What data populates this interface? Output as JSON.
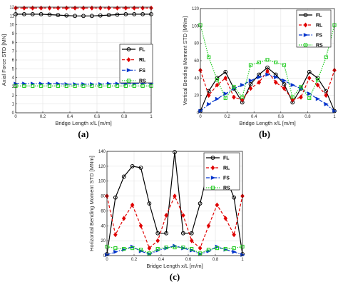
{
  "chart_data": [
    {
      "id": "a",
      "type": "line",
      "caption": "(a)",
      "xlabel": "Bridge Length x/L [m/m]",
      "ylabel": "Axial Force STD [MN]",
      "xlim": [
        0,
        1
      ],
      "ylim": [
        0,
        12
      ],
      "xticks": [
        0,
        0.2,
        0.4,
        0.6,
        0.8,
        1
      ],
      "xtick_labels": [
        "0",
        "0.2",
        "0.4",
        "0.6",
        "0.8",
        "1"
      ],
      "yticks": [
        0,
        1,
        2,
        3,
        4,
        5,
        6,
        7,
        8,
        9,
        10,
        11,
        12
      ],
      "ytick_labels": [
        "0",
        "1",
        "2",
        "3",
        "4",
        "5",
        "6",
        "7",
        "8",
        "9",
        "10",
        "11",
        "12"
      ],
      "grid": true,
      "legend": "center-right",
      "x": [
        0,
        0.0625,
        0.125,
        0.1875,
        0.25,
        0.3125,
        0.375,
        0.4375,
        0.5,
        0.5625,
        0.625,
        0.6875,
        0.75,
        0.8125,
        0.875,
        0.9375,
        1
      ],
      "series": [
        {
          "name": "FL",
          "color": "#000000",
          "marker": "circle",
          "dash": "solid",
          "values": [
            11.2,
            11.2,
            11.2,
            11.2,
            11.15,
            11.1,
            11.05,
            11.0,
            11.0,
            11.0,
            11.05,
            11.1,
            11.15,
            11.2,
            11.2,
            11.2,
            11.2
          ]
        },
        {
          "name": "RL",
          "color": "#e00000",
          "marker": "diamond",
          "dash": "dashed",
          "values": [
            11.9,
            11.9,
            11.9,
            11.9,
            11.9,
            11.9,
            11.9,
            11.9,
            11.9,
            11.9,
            11.9,
            11.9,
            11.9,
            11.9,
            11.9,
            11.9,
            11.9
          ]
        },
        {
          "name": "FS",
          "color": "#0033cc",
          "marker": "triangle",
          "dash": "dashdot",
          "values": [
            3.3,
            3.3,
            3.3,
            3.3,
            3.3,
            3.3,
            3.25,
            3.25,
            3.25,
            3.25,
            3.25,
            3.3,
            3.3,
            3.3,
            3.3,
            3.35,
            3.35
          ]
        },
        {
          "name": "RS",
          "color": "#22cc22",
          "marker": "square",
          "dash": "dotted",
          "values": [
            3.05,
            3.05,
            3.05,
            3.05,
            3.05,
            3.05,
            3.05,
            3.05,
            3.05,
            3.05,
            3.05,
            3.05,
            3.05,
            3.05,
            3.05,
            3.05,
            3.05
          ]
        }
      ]
    },
    {
      "id": "b",
      "type": "line",
      "caption": "(b)",
      "xlabel": "Bridge Length x/L [m/m]",
      "ylabel": "Vertical Bending Moment STD [MNm]",
      "xlim": [
        0,
        1
      ],
      "ylim": [
        0,
        120
      ],
      "xticks": [
        0,
        0.2,
        0.4,
        0.6,
        0.8,
        1
      ],
      "xtick_labels": [
        "0",
        "0.2",
        "0.4",
        "0.6",
        "0.8",
        "1"
      ],
      "yticks": [
        0,
        20,
        40,
        60,
        80,
        100,
        120
      ],
      "ytick_labels": [
        "0",
        "20",
        "40",
        "60",
        "80",
        "100",
        "120"
      ],
      "grid": true,
      "legend": "top-right",
      "x": [
        0,
        0.0625,
        0.125,
        0.1875,
        0.25,
        0.3125,
        0.375,
        0.4375,
        0.5,
        0.5625,
        0.625,
        0.6875,
        0.75,
        0.8125,
        0.875,
        0.9375,
        1
      ],
      "series": [
        {
          "name": "FL",
          "color": "#000000",
          "marker": "circle",
          "dash": "solid",
          "values": [
            2,
            25,
            40,
            47,
            28,
            12,
            33,
            44,
            52,
            44,
            33,
            12,
            28,
            47,
            40,
            25,
            2
          ]
        },
        {
          "name": "RL",
          "color": "#e00000",
          "marker": "diamond",
          "dash": "dashed",
          "values": [
            49,
            20,
            32,
            40,
            18,
            15,
            28,
            35,
            48,
            35,
            28,
            15,
            18,
            40,
            32,
            20,
            49
          ]
        },
        {
          "name": "FS",
          "color": "#0033cc",
          "marker": "triangle",
          "dash": "dashdot",
          "values": [
            2,
            10,
            16,
            22,
            28,
            32,
            37,
            41,
            44,
            41,
            37,
            32,
            28,
            22,
            16,
            10,
            2
          ]
        },
        {
          "name": "RS",
          "color": "#22cc22",
          "marker": "square",
          "dash": "dotted",
          "values": [
            101,
            64,
            38,
            17,
            30,
            18,
            55,
            58,
            61,
            58,
            55,
            18,
            30,
            17,
            38,
            64,
            101
          ]
        }
      ]
    },
    {
      "id": "c",
      "type": "line",
      "caption": "(c)",
      "xlabel": "Bridge Length x/L [m/m]",
      "ylabel": "Horizontal Bending Moment STD [MNm]",
      "xlim": [
        0,
        1
      ],
      "ylim": [
        0,
        140
      ],
      "xticks": [
        0,
        0.2,
        0.4,
        0.6,
        0.8,
        1
      ],
      "xtick_labels": [
        "0",
        "0.2",
        "0.4",
        "0.6",
        "0.8",
        "1"
      ],
      "yticks": [
        0,
        20,
        40,
        60,
        80,
        100,
        120,
        140
      ],
      "ytick_labels": [
        "0",
        "20",
        "40",
        "60",
        "80",
        "100",
        "120",
        "140"
      ],
      "grid": true,
      "legend": "top-right",
      "x": [
        0,
        0.0625,
        0.125,
        0.1875,
        0.25,
        0.3125,
        0.375,
        0.4375,
        0.5,
        0.5625,
        0.625,
        0.6875,
        0.75,
        0.8125,
        0.875,
        0.9375,
        1
      ],
      "series": [
        {
          "name": "FL",
          "color": "#000000",
          "marker": "circle",
          "dash": "solid",
          "values": [
            2,
            78,
            106,
            120,
            118,
            70,
            30,
            30,
            139,
            30,
            30,
            70,
            118,
            120,
            106,
            78,
            2
          ]
        },
        {
          "name": "RL",
          "color": "#e00000",
          "marker": "diamond",
          "dash": "dashed",
          "values": [
            80,
            28,
            50,
            68,
            40,
            10,
            20,
            54,
            80,
            54,
            20,
            10,
            40,
            68,
            50,
            28,
            80
          ]
        },
        {
          "name": "FS",
          "color": "#0033cc",
          "marker": "triangle",
          "dash": "dashdot",
          "values": [
            1,
            5,
            8,
            12,
            6,
            2,
            7,
            10,
            13,
            10,
            7,
            2,
            6,
            12,
            8,
            5,
            1
          ]
        },
        {
          "name": "RS",
          "color": "#22cc22",
          "marker": "square",
          "dash": "dotted",
          "values": [
            12,
            10,
            9,
            10,
            8,
            3,
            9,
            11,
            11,
            11,
            9,
            3,
            8,
            10,
            9,
            10,
            12
          ]
        }
      ]
    }
  ]
}
